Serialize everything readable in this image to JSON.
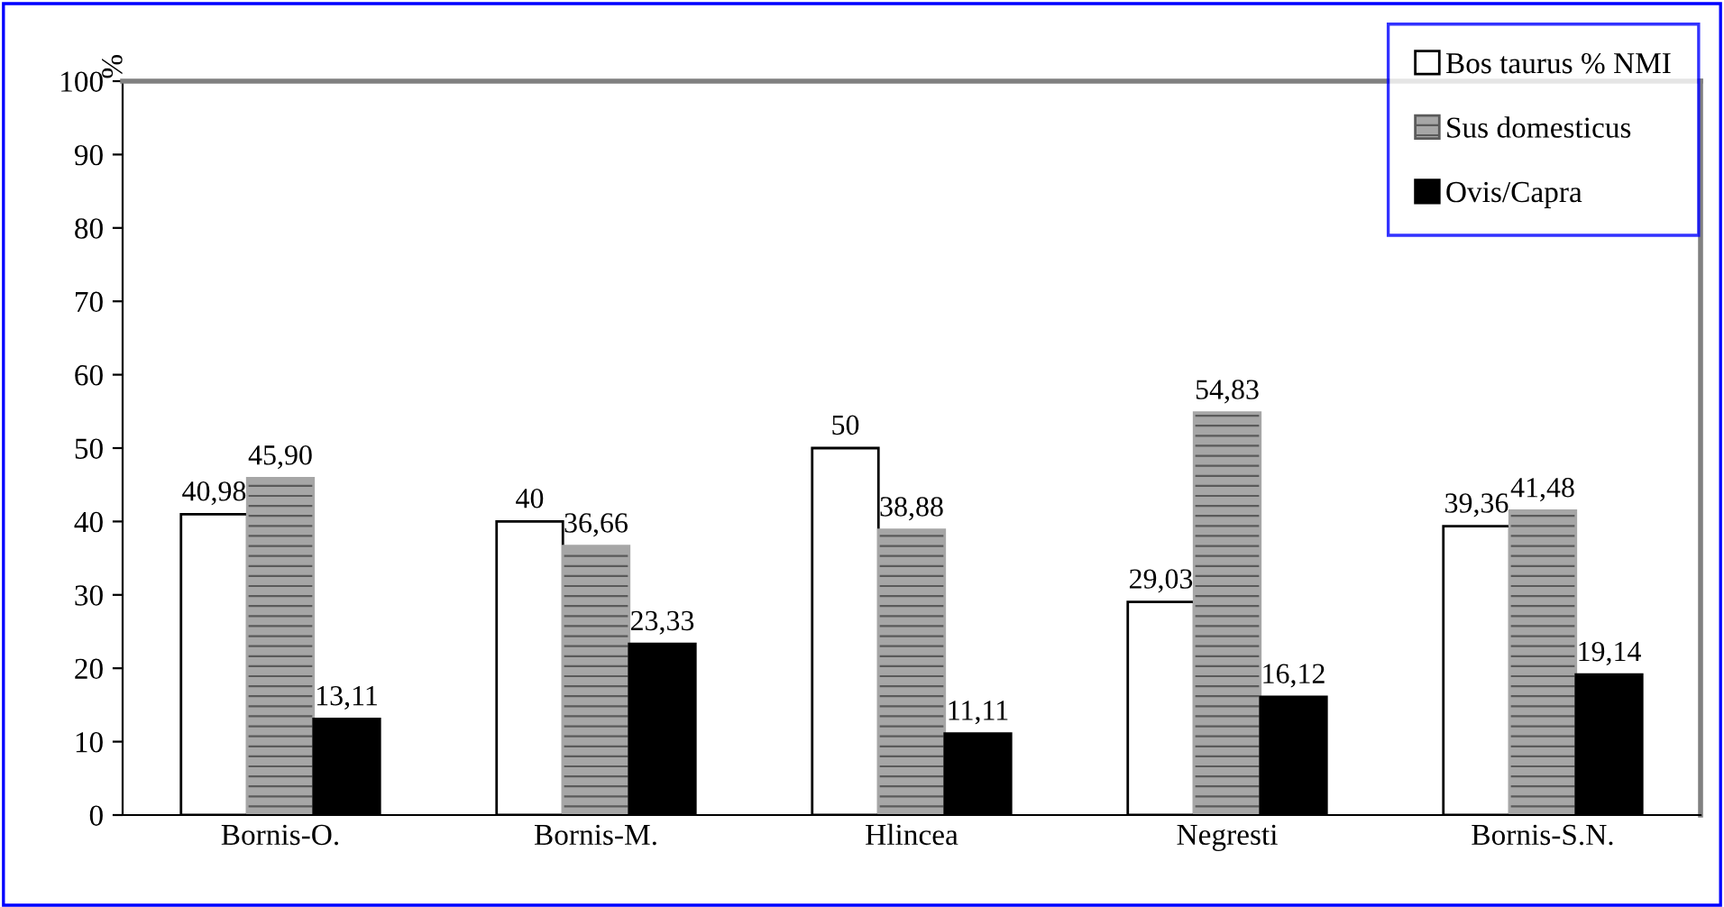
{
  "chart_data": {
    "type": "bar",
    "ylabel": "%",
    "categories": [
      "Bornis-O.",
      "Bornis-M.",
      "Hlincea",
      "Negresti",
      "Bornis-S.N."
    ],
    "series": [
      {
        "name": "Bos taurus % NMI",
        "color": "#ffffff",
        "values": [
          40.98,
          40,
          50,
          29.03,
          39.36
        ],
        "value_labels": [
          "40,98",
          "40",
          "50",
          "29,03",
          "39,36"
        ]
      },
      {
        "name": "Sus domesticus",
        "color": "#a6a6a6",
        "values": [
          45.9,
          36.66,
          38.88,
          54.83,
          41.48
        ],
        "value_labels": [
          "45,90",
          "36,66",
          "38,88",
          "54,83",
          "41,48"
        ]
      },
      {
        "name": "Ovis/Capra",
        "color": "#000000",
        "values": [
          13.11,
          23.33,
          11.11,
          16.12,
          19.14
        ],
        "value_labels": [
          "13,11",
          "23,33",
          "11,11",
          "16,12",
          "19,14"
        ]
      }
    ],
    "ylim": [
      0,
      100
    ],
    "yticks": [
      0,
      10,
      20,
      30,
      40,
      50,
      60,
      70,
      80,
      90,
      100
    ],
    "grid": false,
    "legend": "top right"
  }
}
